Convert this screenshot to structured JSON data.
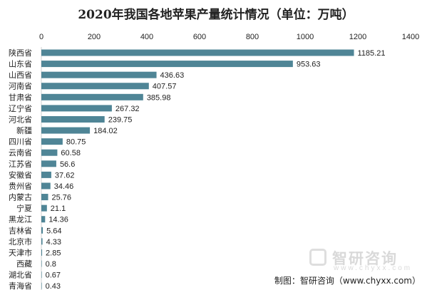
{
  "chart_data": {
    "type": "bar",
    "orientation": "horizontal",
    "title": "2020年我国各地苹果产量统计情况（单位：万吨）",
    "categories": [
      "陕西省",
      "山东省",
      "山西省",
      "河南省",
      "甘肃省",
      "辽宁省",
      "河北省",
      "新疆",
      "四川省",
      "云南省",
      "江苏省",
      "安徽省",
      "贵州省",
      "内蒙古",
      "宁夏",
      "黑龙江",
      "吉林省",
      "北京市",
      "天津市",
      "西藏",
      "湖北省",
      "青海省"
    ],
    "values": [
      1185.21,
      953.63,
      436.63,
      407.57,
      385.98,
      267.32,
      239.75,
      184.02,
      80.75,
      60.58,
      56.6,
      37.62,
      34.46,
      25.76,
      21.1,
      14.36,
      5.64,
      4.33,
      2.85,
      0.8,
      0.67,
      0.43
    ],
    "value_labels": [
      "1185.21",
      "953.63",
      "436.63",
      "407.57",
      "385.98",
      "267.32",
      "239.75",
      "184.02",
      "80.75",
      "60.58",
      "56.6",
      "37.62",
      "34.46",
      "25.76",
      "21.1",
      "14.36",
      "5.64",
      "4.33",
      "2.85",
      "0.8",
      "0.67",
      "0.43"
    ],
    "xlim": [
      0,
      1400
    ],
    "xticks": [
      "0",
      "200",
      "400",
      "600",
      "800",
      "1000",
      "1200",
      "1400"
    ],
    "x_axis_position": "top",
    "grid": false,
    "bar_color": "#4f8596",
    "source": "制图：智研咨询（www.chyxx.com）"
  },
  "watermark": {
    "brand": "智研咨询",
    "url": "www.chyxx.com"
  }
}
